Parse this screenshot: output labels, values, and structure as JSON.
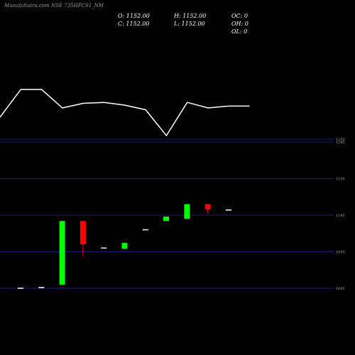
{
  "title": "MunafaSutra.com NSE 735HFCS1_NM",
  "ohlc": {
    "open": "O: 1152.00",
    "high": "H: 1152.00",
    "oc": "OC: 0",
    "close": "C: 1152.00",
    "low": "L: 1152.00",
    "oh": "OH: 0",
    "ol": "OL: 0"
  },
  "chart_data": {
    "type": "candlestick",
    "title": "MunafaSutra.com NSE 735HFCS1_NM",
    "price_ticks": [
      {
        "value": 1250,
        "label": "1250"
      },
      {
        "value": 1245,
        "label": "1245"
      },
      {
        "value": 1195,
        "label": "1195"
      },
      {
        "value": 1145,
        "label": "1145"
      },
      {
        "value": 1095,
        "label": "1095"
      },
      {
        "value": 1045,
        "label": "1045"
      }
    ],
    "ylim": [
      1045,
      1250
    ],
    "candles": [
      {
        "open": 1045,
        "high": 1045,
        "low": 1045,
        "close": 1045
      },
      {
        "open": 1046,
        "high": 1046,
        "low": 1046,
        "close": 1046
      },
      {
        "open": 1050,
        "high": 1137,
        "low": 1050,
        "close": 1137
      },
      {
        "open": 1137,
        "high": 1137,
        "low": 1089,
        "close": 1105
      },
      {
        "open": 1100,
        "high": 1100,
        "low": 1100,
        "close": 1100
      },
      {
        "open": 1099,
        "high": 1107,
        "low": 1099,
        "close": 1107
      },
      {
        "open": 1125,
        "high": 1125,
        "low": 1125,
        "close": 1125
      },
      {
        "open": 1137,
        "high": 1143,
        "low": 1137,
        "close": 1143
      },
      {
        "open": 1140,
        "high": 1160,
        "low": 1140,
        "close": 1160
      },
      {
        "open": 1160,
        "high": 1160,
        "low": 1147,
        "close": 1153
      },
      {
        "open": 1152,
        "high": 1152,
        "low": 1152,
        "close": 1152
      }
    ],
    "volume_line": [
      1,
      4,
      4,
      2,
      2.5,
      2.6,
      2.3,
      1.8,
      -1,
      2.6,
      2,
      2.2,
      2.2
    ],
    "colors": {
      "up": "#00ff00",
      "down": "#ff0000",
      "doji": "#ffffff",
      "grid": "#1a1a80",
      "line": "#ffffff",
      "background": "#000000"
    }
  }
}
